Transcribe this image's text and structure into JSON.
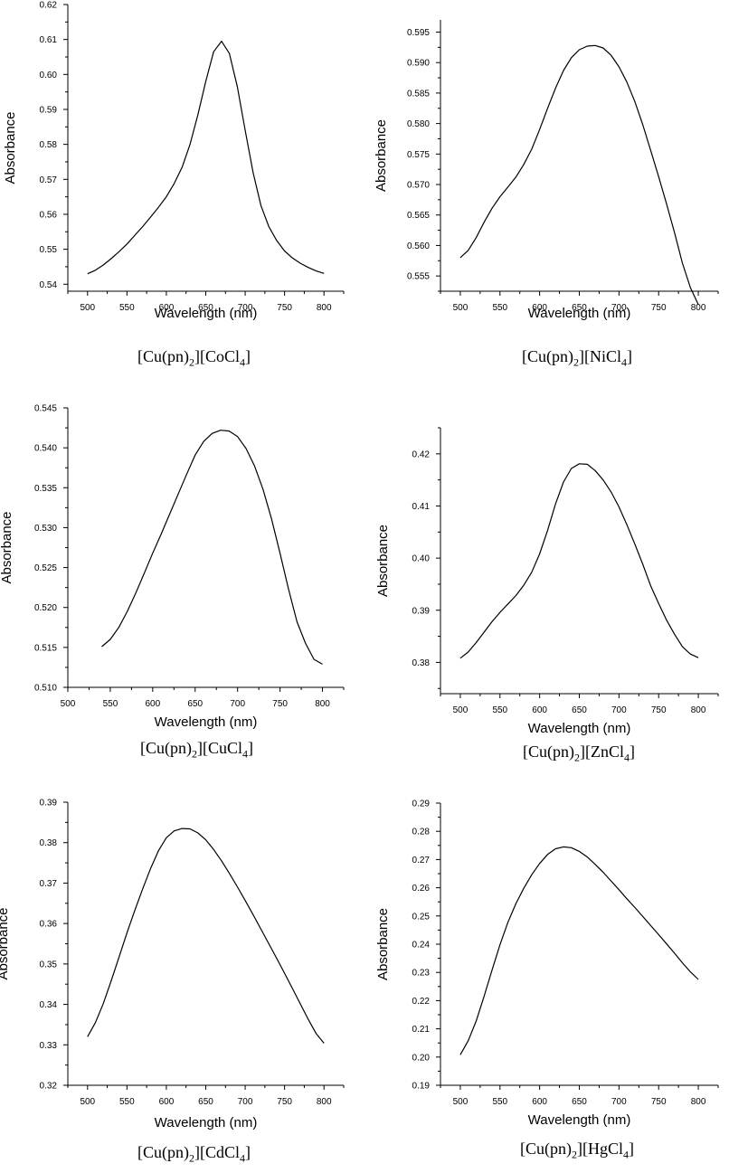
{
  "chart_data": [
    {
      "type": "line",
      "title": "",
      "caption": {
        "pre": "[Cu(pn)",
        "sub1": "2",
        "mid": "][CoCl",
        "sub2": "4",
        "post": "]"
      },
      "xlabel": "Wavelength (nm)",
      "ylabel": "Absorbance",
      "xlim": [
        475,
        825
      ],
      "ylim": [
        0.538,
        0.62
      ],
      "xticks": [
        500,
        550,
        600,
        650,
        700,
        750,
        800
      ],
      "xtick_labels": [
        "500",
        "550",
        "600",
        "650",
        "700",
        "750",
        "800"
      ],
      "yticks": [
        0.54,
        0.55,
        0.56,
        0.57,
        0.58,
        0.59,
        0.6,
        0.61,
        0.62
      ],
      "ytick_labels": [
        "0.54",
        "0.55",
        "0.56",
        "0.57",
        "0.58",
        "0.59",
        "0.60",
        "0.61",
        "0.62"
      ],
      "series": [
        {
          "x": [
            500,
            510,
            520,
            530,
            540,
            550,
            560,
            570,
            580,
            590,
            600,
            610,
            620,
            630,
            640,
            650,
            660,
            670,
            680,
            690,
            700,
            710,
            720,
            730,
            740,
            750,
            760,
            770,
            780,
            790,
            800
          ],
          "y": [
            0.543,
            0.544,
            0.5455,
            0.5473,
            0.5493,
            0.5515,
            0.554,
            0.5565,
            0.5592,
            0.562,
            0.565,
            0.5688,
            0.5735,
            0.58,
            0.5885,
            0.598,
            0.6065,
            0.6095,
            0.606,
            0.5965,
            0.584,
            0.572,
            0.5625,
            0.5565,
            0.5525,
            0.5495,
            0.5475,
            0.546,
            0.5448,
            0.5438,
            0.5431
          ]
        }
      ]
    },
    {
      "type": "line",
      "title": "",
      "caption": {
        "pre": "[Cu(pn)",
        "sub1": "2",
        "mid": "][NiCl",
        "sub2": "4",
        "post": "]"
      },
      "xlabel": "Wavelength (nm)",
      "ylabel": "Absorbance",
      "xlim": [
        475,
        825
      ],
      "ylim": [
        0.5525,
        0.597
      ],
      "xticks": [
        500,
        550,
        600,
        650,
        700,
        750,
        800
      ],
      "xtick_labels": [
        "500",
        "550",
        "600",
        "650",
        "700",
        "750",
        "800"
      ],
      "yticks": [
        0.555,
        0.56,
        0.565,
        0.57,
        0.575,
        0.58,
        0.585,
        0.59,
        0.595
      ],
      "ytick_labels": [
        "0.555",
        "0.560",
        "0.565",
        "0.570",
        "0.575",
        "0.580",
        "0.585",
        "0.590",
        "0.595"
      ],
      "series": [
        {
          "x": [
            500,
            510,
            520,
            530,
            540,
            550,
            560,
            570,
            580,
            590,
            600,
            610,
            620,
            630,
            640,
            650,
            660,
            670,
            680,
            690,
            700,
            710,
            720,
            730,
            740,
            750,
            760,
            770,
            780,
            790,
            800
          ],
          "y": [
            0.558,
            0.5592,
            0.5613,
            0.5638,
            0.5661,
            0.568,
            0.5696,
            0.5712,
            0.5733,
            0.5758,
            0.579,
            0.5825,
            0.5858,
            0.5887,
            0.5908,
            0.5921,
            0.5927,
            0.5928,
            0.5924,
            0.5912,
            0.5893,
            0.5868,
            0.5836,
            0.5798,
            0.5756,
            0.5713,
            0.5668,
            0.5621,
            0.5571,
            0.5531,
            0.5503
          ]
        }
      ]
    },
    {
      "type": "line",
      "title": "",
      "caption": {
        "pre": "[Cu(pn)",
        "sub1": "2",
        "mid": "][CuCl",
        "sub2": "4",
        "post": "]"
      },
      "xlabel": "Wavelength (nm)",
      "ylabel": "Absorbance",
      "xlim": [
        500,
        825
      ],
      "ylim": [
        0.51,
        0.545
      ],
      "xticks": [
        500,
        550,
        600,
        650,
        700,
        750,
        800
      ],
      "xtick_labels": [
        "500",
        "550",
        "600",
        "650",
        "700",
        "750",
        "800"
      ],
      "yticks": [
        0.51,
        0.515,
        0.52,
        0.525,
        0.53,
        0.535,
        0.54,
        0.545
      ],
      "ytick_labels": [
        "0.510",
        "0.515",
        "0.520",
        "0.525",
        "0.530",
        "0.535",
        "0.540",
        "0.545"
      ],
      "series": [
        {
          "x": [
            540,
            550,
            560,
            570,
            580,
            590,
            600,
            610,
            620,
            630,
            640,
            650,
            660,
            670,
            680,
            690,
            700,
            710,
            720,
            730,
            740,
            750,
            760,
            770,
            780,
            790,
            800
          ],
          "y": [
            0.5151,
            0.516,
            0.5175,
            0.5195,
            0.5218,
            0.5243,
            0.5268,
            0.5292,
            0.5317,
            0.5342,
            0.5367,
            0.5391,
            0.5408,
            0.5418,
            0.5422,
            0.5421,
            0.5414,
            0.5399,
            0.5377,
            0.5348,
            0.5311,
            0.5268,
            0.5223,
            0.5182,
            0.5155,
            0.5135,
            0.5129
          ]
        }
      ]
    },
    {
      "type": "line",
      "title": "",
      "caption": {
        "pre": "[Cu(pn)",
        "sub1": "2",
        "mid": "][ZnCl",
        "sub2": "4",
        "post": "]"
      },
      "xlabel": "Wavelength (nm)",
      "ylabel": "Absorbance",
      "xlim": [
        475,
        825
      ],
      "ylim": [
        0.374,
        0.425
      ],
      "xticks": [
        500,
        550,
        600,
        650,
        700,
        750,
        800
      ],
      "xtick_labels": [
        "500",
        "550",
        "600",
        "650",
        "700",
        "750",
        "800"
      ],
      "yticks": [
        0.38,
        0.39,
        0.4,
        0.41,
        0.42
      ],
      "ytick_labels": [
        "0.38",
        "0.39",
        "0.40",
        "0.41",
        "0.42"
      ],
      "series": [
        {
          "x": [
            500,
            510,
            520,
            530,
            540,
            550,
            560,
            570,
            580,
            590,
            600,
            610,
            620,
            630,
            640,
            650,
            660,
            670,
            680,
            690,
            700,
            710,
            720,
            730,
            740,
            750,
            760,
            770,
            780,
            790,
            800
          ],
          "y": [
            0.3808,
            0.382,
            0.3838,
            0.3858,
            0.3878,
            0.3896,
            0.3912,
            0.3928,
            0.3948,
            0.3973,
            0.4008,
            0.4053,
            0.4104,
            0.4146,
            0.4172,
            0.4181,
            0.418,
            0.4168,
            0.415,
            0.4127,
            0.4098,
            0.4064,
            0.4027,
            0.3988,
            0.3947,
            0.3913,
            0.3881,
            0.3854,
            0.383,
            0.3816,
            0.3809
          ]
        }
      ]
    },
    {
      "type": "line",
      "title": "",
      "caption": {
        "pre": "[Cu(pn)",
        "sub1": "2",
        "mid": "][CdCl",
        "sub2": "4",
        "post": "]"
      },
      "xlabel": "Wavelength (nm)",
      "ylabel": "Absorbance",
      "xlim": [
        475,
        825
      ],
      "ylim": [
        0.32,
        0.39
      ],
      "xticks": [
        500,
        550,
        600,
        650,
        700,
        750,
        800
      ],
      "xtick_labels": [
        "500",
        "550",
        "600",
        "650",
        "700",
        "750",
        "800"
      ],
      "yticks": [
        0.32,
        0.33,
        0.34,
        0.35,
        0.36,
        0.37,
        0.38,
        0.39
      ],
      "ytick_labels": [
        "0.32",
        "0.33",
        "0.34",
        "0.35",
        "0.36",
        "0.37",
        "0.38",
        "0.39"
      ],
      "series": [
        {
          "x": [
            500,
            510,
            520,
            530,
            540,
            550,
            560,
            570,
            580,
            590,
            600,
            610,
            620,
            630,
            640,
            650,
            660,
            670,
            680,
            690,
            700,
            710,
            720,
            730,
            740,
            750,
            760,
            770,
            780,
            790,
            800
          ],
          "y": [
            0.332,
            0.3355,
            0.3402,
            0.3458,
            0.3517,
            0.3577,
            0.3633,
            0.3686,
            0.3736,
            0.378,
            0.3812,
            0.3829,
            0.3835,
            0.3834,
            0.3824,
            0.3807,
            0.3783,
            0.3755,
            0.3724,
            0.3691,
            0.3657,
            0.3622,
            0.3586,
            0.355,
            0.3514,
            0.3477,
            0.3439,
            0.3401,
            0.3363,
            0.3328,
            0.3304
          ]
        }
      ]
    },
    {
      "type": "line",
      "title": "",
      "caption": {
        "pre": "[Cu(pn)",
        "sub1": "2",
        "mid": "][HgCl",
        "sub2": "4",
        "post": "]"
      },
      "xlabel": "Wavelength (nm)",
      "ylabel": "Absorbance",
      "xlim": [
        475,
        825
      ],
      "ylim": [
        0.19,
        0.29
      ],
      "xticks": [
        500,
        550,
        600,
        650,
        700,
        750,
        800
      ],
      "xtick_labels": [
        "500",
        "550",
        "600",
        "650",
        "700",
        "750",
        "800"
      ],
      "yticks": [
        0.19,
        0.2,
        0.21,
        0.22,
        0.23,
        0.24,
        0.25,
        0.26,
        0.27,
        0.28,
        0.29
      ],
      "ytick_labels": [
        "0.19",
        "0.20",
        "0.21",
        "0.22",
        "0.23",
        "0.24",
        "0.25",
        "0.26",
        "0.27",
        "0.28",
        "0.29"
      ],
      "series": [
        {
          "x": [
            500,
            510,
            520,
            530,
            540,
            550,
            560,
            570,
            580,
            590,
            600,
            610,
            620,
            630,
            640,
            650,
            660,
            670,
            680,
            690,
            700,
            710,
            720,
            730,
            740,
            750,
            760,
            770,
            780,
            790,
            800
          ],
          "y": [
            0.2008,
            0.2058,
            0.2128,
            0.2215,
            0.2308,
            0.2398,
            0.2478,
            0.2543,
            0.2598,
            0.2646,
            0.2686,
            0.2718,
            0.2738,
            0.2745,
            0.2742,
            0.2729,
            0.2709,
            0.2683,
            0.2655,
            0.2624,
            0.2593,
            0.2561,
            0.253,
            0.2498,
            0.2466,
            0.2434,
            0.2401,
            0.2368,
            0.2334,
            0.2302,
            0.2275
          ]
        }
      ]
    }
  ]
}
